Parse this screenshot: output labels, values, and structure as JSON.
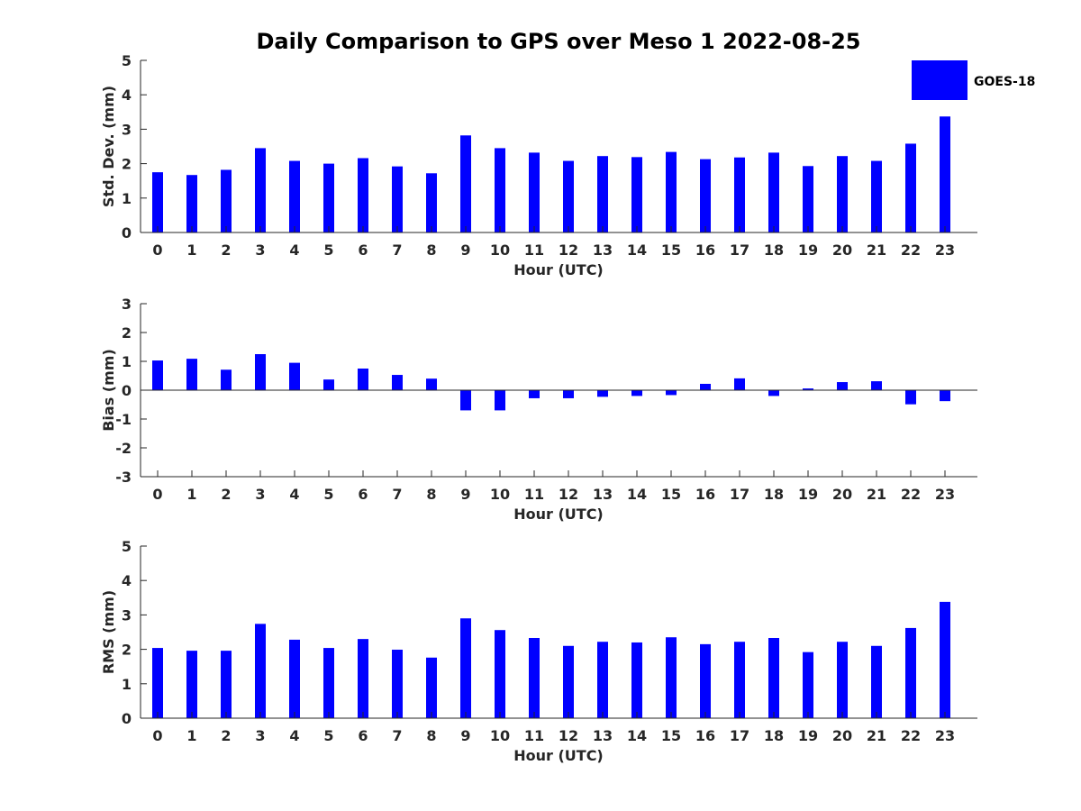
{
  "chart_data": {
    "type": "bar",
    "title": "Daily Comparison to GPS over Meso 1 2022-08-25",
    "legend": {
      "label": "GOES-18",
      "color": "#0000ff",
      "placement": "top-right"
    },
    "categories": [
      "0",
      "1",
      "2",
      "3",
      "4",
      "5",
      "6",
      "7",
      "8",
      "9",
      "10",
      "11",
      "12",
      "13",
      "14",
      "15",
      "16",
      "17",
      "18",
      "19",
      "20",
      "21",
      "22",
      "23"
    ],
    "panels": [
      {
        "name": "std-dev",
        "ylabel": "Std. Dev. (mm)",
        "xlabel": "Hour (UTC)",
        "ylim": [
          0,
          5
        ],
        "yticks": [
          0,
          1,
          2,
          3,
          4,
          5
        ],
        "series": [
          {
            "name": "GOES-18",
            "values": [
              1.75,
              1.67,
              1.82,
              2.45,
              2.08,
              2.0,
              2.16,
              1.92,
              1.72,
              2.82,
              2.45,
              2.32,
              2.08,
              2.22,
              2.19,
              2.34,
              2.13,
              2.18,
              2.32,
              1.93,
              2.22,
              2.08,
              2.58,
              3.37
            ]
          }
        ]
      },
      {
        "name": "bias",
        "ylabel": "Bias (mm)",
        "xlabel": "Hour (UTC)",
        "ylim": [
          -3,
          3
        ],
        "yticks": [
          -3,
          -2,
          -1,
          0,
          1,
          2,
          3
        ],
        "series": [
          {
            "name": "GOES-18",
            "values": [
              1.03,
              1.09,
              0.71,
              1.25,
              0.95,
              0.37,
              0.75,
              0.53,
              0.4,
              -0.7,
              -0.7,
              -0.28,
              -0.28,
              -0.23,
              -0.2,
              -0.17,
              0.22,
              0.41,
              -0.2,
              0.06,
              0.28,
              0.31,
              -0.49,
              -0.38
            ]
          }
        ]
      },
      {
        "name": "rms",
        "ylabel": "RMS (mm)",
        "xlabel": "Hour (UTC)",
        "ylim": [
          0,
          5
        ],
        "yticks": [
          0,
          1,
          2,
          3,
          4,
          5
        ],
        "series": [
          {
            "name": "GOES-18",
            "values": [
              2.04,
              1.96,
              1.96,
              2.74,
              2.28,
              2.04,
              2.3,
              1.99,
              1.76,
              2.9,
              2.56,
              2.33,
              2.1,
              2.22,
              2.2,
              2.35,
              2.15,
              2.22,
              2.33,
              1.92,
              2.22,
              2.1,
              2.62,
              3.38
            ]
          }
        ]
      }
    ]
  }
}
